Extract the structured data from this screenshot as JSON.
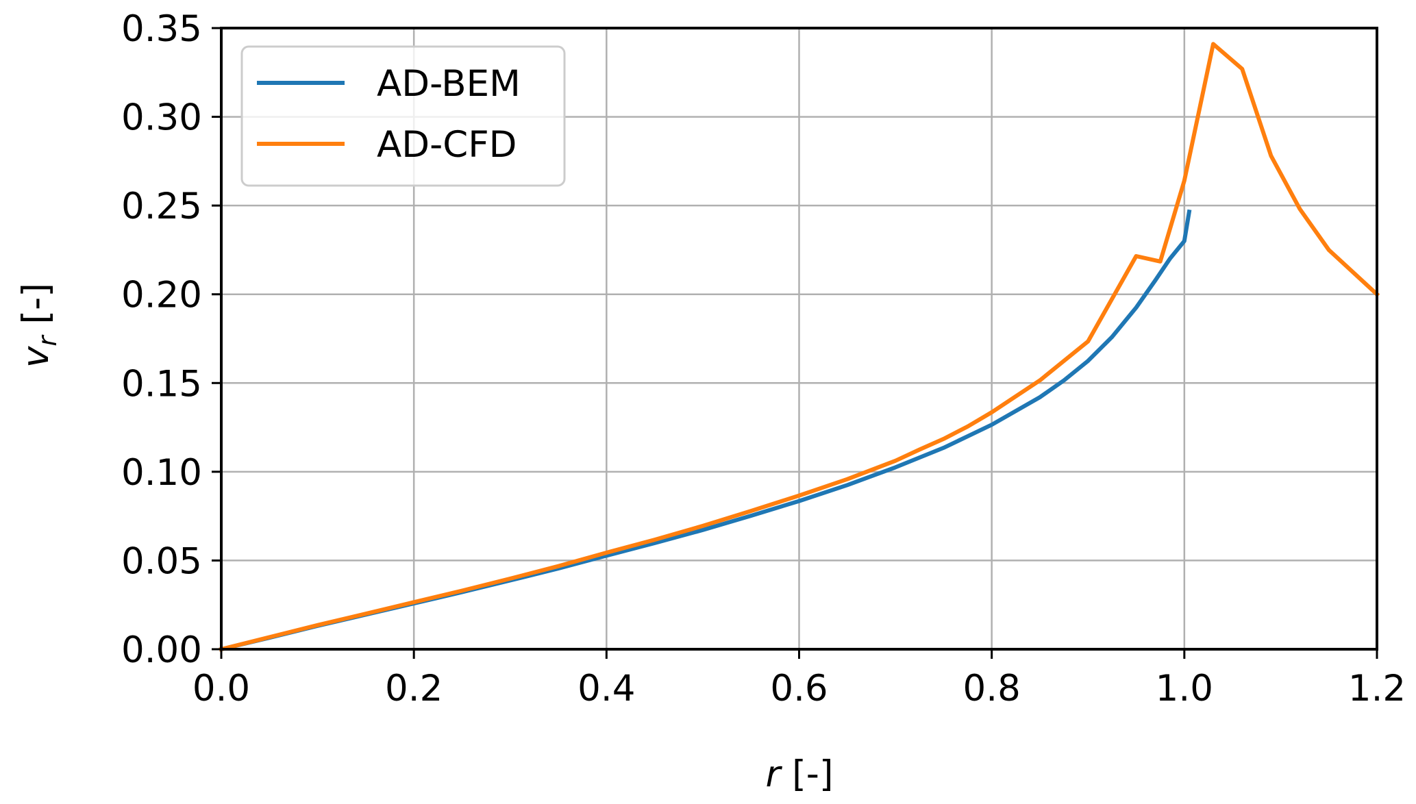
{
  "chart_data": {
    "type": "line",
    "title": "",
    "xlabel": "r [-]",
    "ylabel": "v_r [-]",
    "xlabel_var": "r",
    "xlabel_unit": " [-]",
    "ylabel_var": "v",
    "ylabel_sub": "r",
    "ylabel_unit": " [-]",
    "xlim": [
      0.0,
      1.2
    ],
    "ylim": [
      0.0,
      0.35
    ],
    "xticks": [
      "0.0",
      "0.2",
      "0.4",
      "0.6",
      "0.8",
      "1.0",
      "1.2"
    ],
    "yticks": [
      "0.00",
      "0.05",
      "0.10",
      "0.15",
      "0.20",
      "0.25",
      "0.30",
      "0.35"
    ],
    "grid": true,
    "legend_position": "top-left",
    "series": [
      {
        "name": "AD-BEM",
        "color": "#1f77b4",
        "x": [
          0.0,
          0.05,
          0.1,
          0.15,
          0.2,
          0.25,
          0.3,
          0.35,
          0.4,
          0.45,
          0.5,
          0.55,
          0.6,
          0.65,
          0.7,
          0.75,
          0.8,
          0.85,
          0.875,
          0.9,
          0.925,
          0.95,
          0.97,
          0.985,
          1.0,
          1.005
        ],
        "y": [
          0.0,
          0.0065,
          0.0132,
          0.0195,
          0.0258,
          0.0322,
          0.0388,
          0.0455,
          0.0527,
          0.0598,
          0.0672,
          0.0752,
          0.0835,
          0.0925,
          0.1025,
          0.1135,
          0.1265,
          0.142,
          0.1515,
          0.1625,
          0.176,
          0.1925,
          0.208,
          0.22,
          0.23,
          0.2465
        ]
      },
      {
        "name": "AD-CFD",
        "color": "#ff7f0e",
        "x": [
          0.0,
          0.05,
          0.1,
          0.15,
          0.2,
          0.25,
          0.3,
          0.35,
          0.4,
          0.45,
          0.5,
          0.55,
          0.6,
          0.65,
          0.7,
          0.725,
          0.75,
          0.775,
          0.8,
          0.85,
          0.9,
          0.95,
          0.975,
          1.0,
          1.03,
          1.06,
          1.09,
          1.12,
          1.15,
          1.2
        ],
        "y": [
          0.0,
          0.0068,
          0.0136,
          0.02,
          0.0265,
          0.033,
          0.0398,
          0.0468,
          0.0544,
          0.0617,
          0.0695,
          0.0779,
          0.0866,
          0.0958,
          0.1062,
          0.1125,
          0.1185,
          0.1255,
          0.1335,
          0.1515,
          0.1735,
          0.2215,
          0.2185,
          0.264,
          0.341,
          0.327,
          0.278,
          0.248,
          0.225,
          0.2
        ]
      }
    ]
  }
}
